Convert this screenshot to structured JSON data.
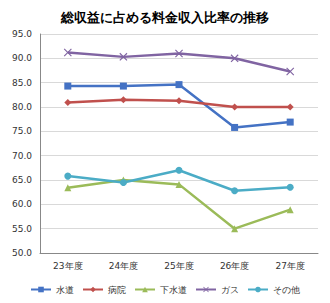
{
  "chart_data": {
    "type": "line",
    "title": "総収益に占める料金収入比率の推移",
    "categories": [
      "23年度",
      "24年度",
      "25年度",
      "26年度",
      "27年度"
    ],
    "series": [
      {
        "name": "水道",
        "color": "#4472c4",
        "marker": "square",
        "values": [
          84.3,
          84.3,
          84.6,
          75.8,
          76.9
        ]
      },
      {
        "name": "病院",
        "color": "#c0504d",
        "marker": "diamond",
        "values": [
          80.9,
          81.5,
          81.3,
          80.0,
          80.0
        ]
      },
      {
        "name": "下水道",
        "color": "#9bbb59",
        "marker": "triangle",
        "values": [
          63.4,
          65.0,
          64.1,
          55.0,
          58.9
        ]
      },
      {
        "name": "ガス",
        "color": "#8064a2",
        "marker": "x",
        "values": [
          91.2,
          90.3,
          91.0,
          90.0,
          87.3
        ]
      },
      {
        "name": "その他",
        "color": "#4bacc6",
        "marker": "circle",
        "values": [
          65.8,
          64.5,
          67.0,
          62.8,
          63.5
        ]
      }
    ],
    "ylim": [
      50,
      95
    ],
    "yticks": [
      {
        "value": 50,
        "label": "50.0"
      },
      {
        "value": 55,
        "label": "55.0"
      },
      {
        "value": 60,
        "label": "60.0"
      },
      {
        "value": 65,
        "label": "65.0"
      },
      {
        "value": 70,
        "label": "70.0"
      },
      {
        "value": 75,
        "label": "75.0"
      },
      {
        "value": 80,
        "label": "80.0"
      },
      {
        "value": 85,
        "label": "85.0"
      },
      {
        "value": 90,
        "label": "90.0"
      },
      {
        "value": 95,
        "label": "95.0"
      }
    ],
    "grid": true,
    "legend": "bottom"
  }
}
